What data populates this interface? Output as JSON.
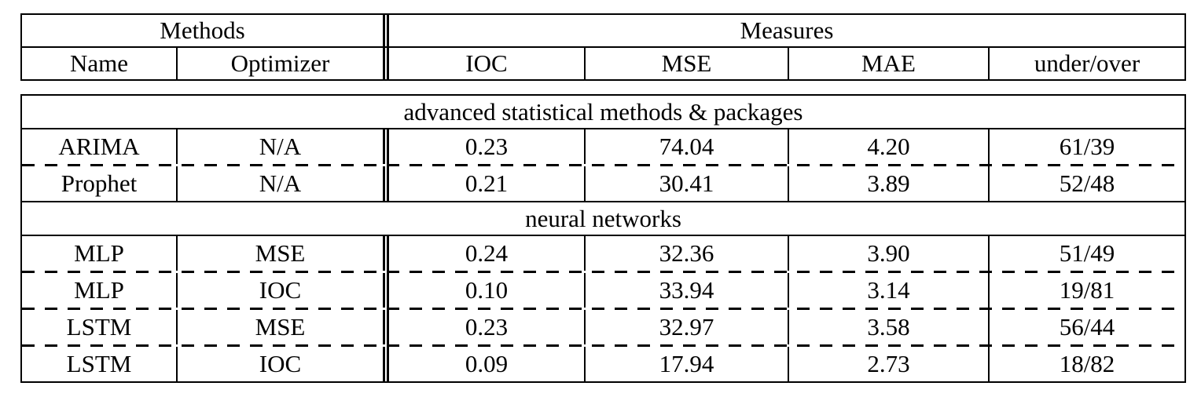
{
  "table": {
    "header": {
      "methods_group": "Methods",
      "measures_group": "Measures",
      "columns": [
        "Name",
        "Optimizer",
        "IOC",
        "MSE",
        "MAE",
        "under/over"
      ]
    },
    "sections": [
      {
        "title": "advanced statistical methods & packages",
        "rows": [
          {
            "cells": [
              "ARIMA",
              "N/A",
              "0.23",
              "74.04",
              "4.20",
              "61/39"
            ]
          },
          {
            "cells": [
              "Prophet",
              "N/A",
              "0.21",
              "30.41",
              "3.89",
              "52/48"
            ]
          }
        ]
      },
      {
        "title": "neural networks",
        "rows": [
          {
            "cells": [
              "MLP",
              "MSE",
              "0.24",
              "32.36",
              "3.90",
              "51/49"
            ]
          },
          {
            "cells": [
              "MLP",
              "IOC",
              "0.10",
              "33.94",
              "3.14",
              "19/81"
            ]
          },
          {
            "cells": [
              "LSTM",
              "MSE",
              "0.23",
              "32.97",
              "3.58",
              "56/44"
            ]
          },
          {
            "cells": [
              "LSTM",
              "IOC",
              "0.09",
              "17.94",
              "2.73",
              "18/82"
            ]
          }
        ]
      }
    ],
    "colors": {
      "border": "#000000",
      "background": "#ffffff",
      "text": "#000000"
    }
  }
}
